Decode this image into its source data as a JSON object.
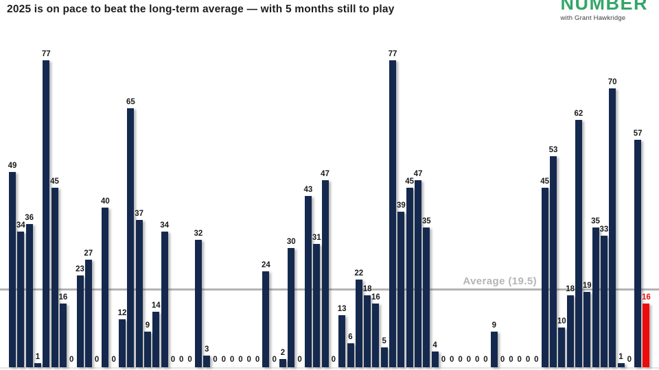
{
  "header": {
    "title": "2025 is on pace to beat the long-term average — with 5 months still to play"
  },
  "logo": {
    "brand": "NUMBER",
    "tagline": "with Grant Hawkridge"
  },
  "chart_data": {
    "type": "bar",
    "title": "2025 is on pace to beat the long-term average — with 5 months still to play",
    "values": [
      49,
      34,
      36,
      1,
      77,
      45,
      16,
      0,
      23,
      27,
      0,
      40,
      0,
      12,
      65,
      37,
      9,
      14,
      34,
      0,
      0,
      0,
      32,
      3,
      0,
      0,
      0,
      0,
      0,
      0,
      24,
      0,
      2,
      30,
      0,
      43,
      31,
      47,
      0,
      13,
      6,
      22,
      18,
      16,
      5,
      77,
      39,
      45,
      47,
      35,
      4,
      0,
      0,
      0,
      0,
      0,
      0,
      9,
      0,
      0,
      0,
      0,
      0,
      45,
      53,
      10,
      18,
      62,
      19,
      35,
      33,
      70,
      1,
      0,
      57,
      16
    ],
    "data_labels_shown": true,
    "xlabel": "",
    "ylabel": "",
    "x_tick_labels": [],
    "ylim": [
      0,
      80
    ],
    "grid": false,
    "average_line": {
      "label": "Average (19.5)",
      "value": 19.5
    },
    "highlight_index": 75,
    "colors": {
      "bar": "#15294e",
      "highlight_bar": "#ee0b0b",
      "highlight_label": "#ee0b0b",
      "label": "#1a1a1a",
      "average_line": "#b3b3b3",
      "average_label": "#b5b5b5",
      "brand_green": "#33a667"
    }
  }
}
